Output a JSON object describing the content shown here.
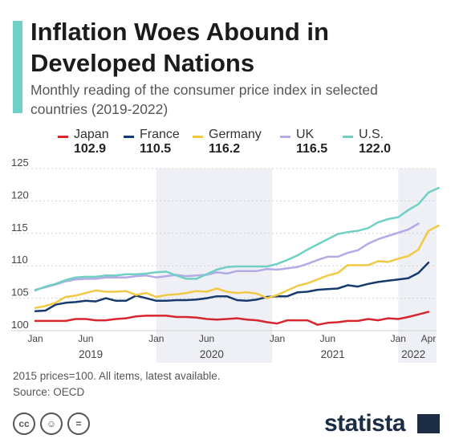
{
  "header": {
    "title": "Inflation Woes Abound in Developed Nations",
    "subtitle": "Monthly reading of the consumer price index in selected countries (2019-2022)"
  },
  "legend": [
    {
      "name": "Japan",
      "value": "102.9",
      "color": "#d7262e"
    },
    {
      "name": "France",
      "value": "110.5",
      "color": "#163a6d"
    },
    {
      "name": "Germany",
      "value": "116.2",
      "color": "#f1c945"
    },
    {
      "name": "UK",
      "value": "116.5",
      "color": "#b3aae6"
    },
    {
      "name": "U.S.",
      "value": "122.0",
      "color": "#6fd0c4"
    }
  ],
  "chart_data": {
    "type": "line",
    "title": "Inflation Woes Abound in Developed Nations",
    "subtitle": "Monthly reading of the consumer price index in selected countries (2019-2022)",
    "x_start": "2019-01",
    "ylim": [
      100,
      125
    ],
    "y_ticks": [
      100,
      105,
      110,
      115,
      120,
      125
    ],
    "x_tick_labels": [
      {
        "month_index": 0,
        "label": "Jan"
      },
      {
        "month_index": 5,
        "label": "Jun"
      },
      {
        "month_index": 12,
        "label": "Jan"
      },
      {
        "month_index": 17,
        "label": "Jun"
      },
      {
        "month_index": 24,
        "label": "Jan"
      },
      {
        "month_index": 29,
        "label": "Jun"
      },
      {
        "month_index": 36,
        "label": "Jan"
      },
      {
        "month_index": 39,
        "label": "Apr"
      }
    ],
    "year_labels": [
      {
        "label": "2019",
        "month_index": 5.5
      },
      {
        "label": "2020",
        "month_index": 17.5
      },
      {
        "label": "2021",
        "month_index": 29.5
      },
      {
        "label": "2022",
        "month_index": 37.5
      }
    ],
    "shaded_years": [
      [
        12,
        23.5
      ],
      [
        36,
        39.8
      ]
    ],
    "grid": true,
    "legend_position": "top",
    "series": [
      {
        "name": "Japan",
        "color": "#d7262e",
        "values": [
          101.5,
          101.5,
          101.5,
          101.5,
          101.8,
          101.8,
          101.6,
          101.6,
          101.8,
          101.9,
          102.2,
          102.3,
          102.3,
          102.3,
          102.1,
          102.1,
          102.0,
          101.8,
          101.7,
          101.8,
          101.9,
          101.7,
          101.6,
          101.3,
          101.1,
          101.6,
          101.6,
          101.6,
          100.9,
          101.2,
          101.3,
          101.5,
          101.5,
          101.8,
          101.6,
          101.9,
          101.8,
          102.1,
          102.5,
          102.9
        ]
      },
      {
        "name": "France",
        "color": "#163a6d",
        "values": [
          103.0,
          103.1,
          104.0,
          104.3,
          104.4,
          104.6,
          104.5,
          105.0,
          104.6,
          104.6,
          105.4,
          105.0,
          104.6,
          104.6,
          104.7,
          104.7,
          104.8,
          105.0,
          105.3,
          105.3,
          104.7,
          104.6,
          104.8,
          105.2,
          105.3,
          105.3,
          105.9,
          106.0,
          106.3,
          106.4,
          106.5,
          107.0,
          106.8,
          107.2,
          107.5,
          107.7,
          107.9,
          108.1,
          108.9,
          110.5
        ]
      },
      {
        "name": "Germany",
        "color": "#f1c945",
        "values": [
          103.5,
          103.8,
          104.3,
          105.2,
          105.4,
          105.8,
          106.2,
          106.0,
          106.0,
          106.1,
          105.5,
          105.8,
          105.2,
          105.5,
          105.6,
          105.8,
          106.1,
          106.0,
          106.5,
          106.0,
          105.8,
          105.9,
          105.7,
          105.0,
          105.5,
          106.2,
          106.9,
          107.3,
          107.9,
          108.5,
          108.9,
          110.1,
          110.1,
          110.1,
          110.7,
          110.6,
          111.1,
          111.5,
          112.5,
          115.4,
          116.2
        ]
      },
      {
        "name": "UK",
        "color": "#b3aae6",
        "values": [
          106.3,
          106.7,
          107.1,
          107.6,
          107.9,
          108.0,
          108.0,
          108.2,
          108.2,
          108.2,
          108.4,
          108.5,
          108.2,
          108.4,
          108.6,
          108.4,
          108.5,
          108.6,
          109.0,
          108.8,
          109.2,
          109.2,
          109.2,
          109.5,
          109.4,
          109.6,
          109.8,
          110.3,
          110.9,
          111.4,
          111.4,
          112.0,
          112.4,
          113.4,
          114.1,
          114.6,
          115.1,
          115.6,
          116.5
        ]
      },
      {
        "name": "U.S.",
        "color": "#6fd0c4",
        "values": [
          106.2,
          106.8,
          107.2,
          107.8,
          108.2,
          108.3,
          108.3,
          108.5,
          108.5,
          108.7,
          108.7,
          108.8,
          109.0,
          109.1,
          108.5,
          108.0,
          108.0,
          108.7,
          109.4,
          109.8,
          109.9,
          109.9,
          109.9,
          109.9,
          110.3,
          110.9,
          111.6,
          112.5,
          113.3,
          114.1,
          114.9,
          115.2,
          115.4,
          115.8,
          116.7,
          117.2,
          117.5,
          118.6,
          119.5,
          121.3,
          122.0
        ]
      }
    ]
  },
  "notes": {
    "line1": "2015 prices=100. All items, latest available.",
    "line2": "Source: OECD"
  },
  "license_icons": [
    "creative-commons-icon",
    "attribution-person-icon",
    "no-derivatives-icon"
  ],
  "license_glyphs": {
    "cc": "cc",
    "by": "☺",
    "nd": "="
  },
  "logo": {
    "text": "statista"
  }
}
